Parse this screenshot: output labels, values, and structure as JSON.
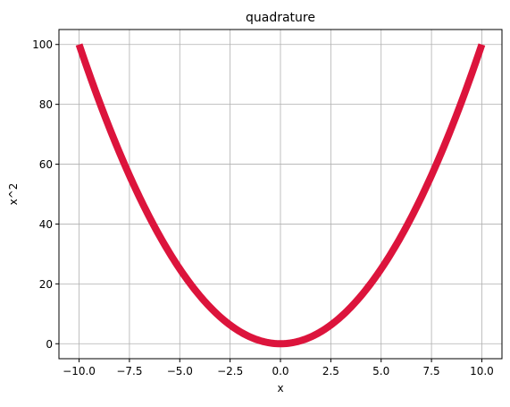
{
  "chart_data": {
    "type": "line",
    "title": "quadrature",
    "xlabel": "x",
    "ylabel": "x^2",
    "xlim": [
      -11,
      11
    ],
    "ylim": [
      -5,
      105
    ],
    "x_ticks": [
      -10.0,
      -7.5,
      -5.0,
      -2.5,
      0.0,
      2.5,
      5.0,
      7.5,
      10.0
    ],
    "x_tick_labels": [
      "−10.0",
      "−7.5",
      "−5.0",
      "−2.5",
      "0.0",
      "2.5",
      "5.0",
      "7.5",
      "10.0"
    ],
    "y_ticks": [
      0,
      20,
      40,
      60,
      80,
      100
    ],
    "y_tick_labels": [
      "0",
      "20",
      "40",
      "60",
      "80",
      "100"
    ],
    "grid": true,
    "series": [
      {
        "function": "x^2",
        "x_range": [
          -10,
          10
        ],
        "color": "#dc143c"
      }
    ],
    "ylabel_color": "#dc143c"
  }
}
